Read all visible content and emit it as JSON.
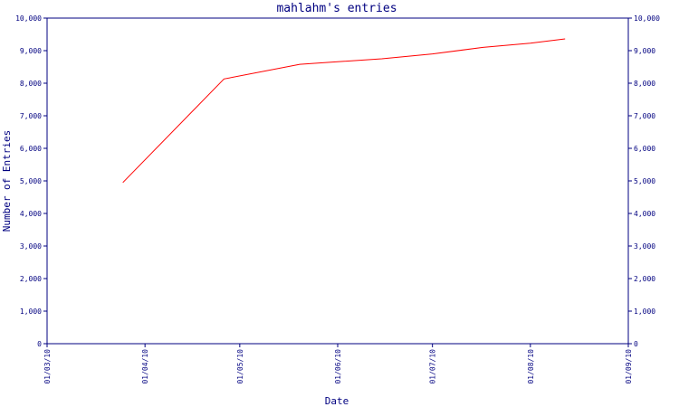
{
  "chart_data": {
    "type": "line",
    "title": "mahlahm's entries",
    "xlabel": "Date",
    "ylabel": "Number of Entries",
    "ylim": [
      0,
      10000
    ],
    "xlim": [
      "2010-03-01",
      "2010-09-01"
    ],
    "grid": false,
    "legend": "none",
    "y_ticks": [
      0,
      1000,
      2000,
      3000,
      4000,
      5000,
      6000,
      7000,
      8000,
      9000,
      10000
    ],
    "y_tick_labels": [
      "0",
      "1,000",
      "2,000",
      "3,000",
      "4,000",
      "5,000",
      "6,000",
      "7,000",
      "8,000",
      "9,000",
      "10,000"
    ],
    "x_ticks": [
      "2010-03-01",
      "2010-04-01",
      "2010-05-01",
      "2010-06-01",
      "2010-07-01",
      "2010-08-01",
      "2010-09-01"
    ],
    "x_tick_labels": [
      "01/03/10",
      "01/04/10",
      "01/05/10",
      "01/06/10",
      "01/07/10",
      "01/08/10",
      "01/09/10"
    ],
    "series": [
      {
        "color": "#ff0000",
        "points": [
          {
            "x": "2010-03-25",
            "y": 4950
          },
          {
            "x": "2010-04-26",
            "y": 8130
          },
          {
            "x": "2010-05-20",
            "y": 8580
          },
          {
            "x": "2010-06-15",
            "y": 8750
          },
          {
            "x": "2010-07-01",
            "y": 8900
          },
          {
            "x": "2010-07-17",
            "y": 9100
          },
          {
            "x": "2010-08-01",
            "y": 9230
          },
          {
            "x": "2010-08-12",
            "y": 9360
          }
        ]
      }
    ],
    "colors": {
      "axis": "#000080",
      "text": "#000080",
      "line": "#ff0000",
      "background": "#ffffff"
    }
  }
}
